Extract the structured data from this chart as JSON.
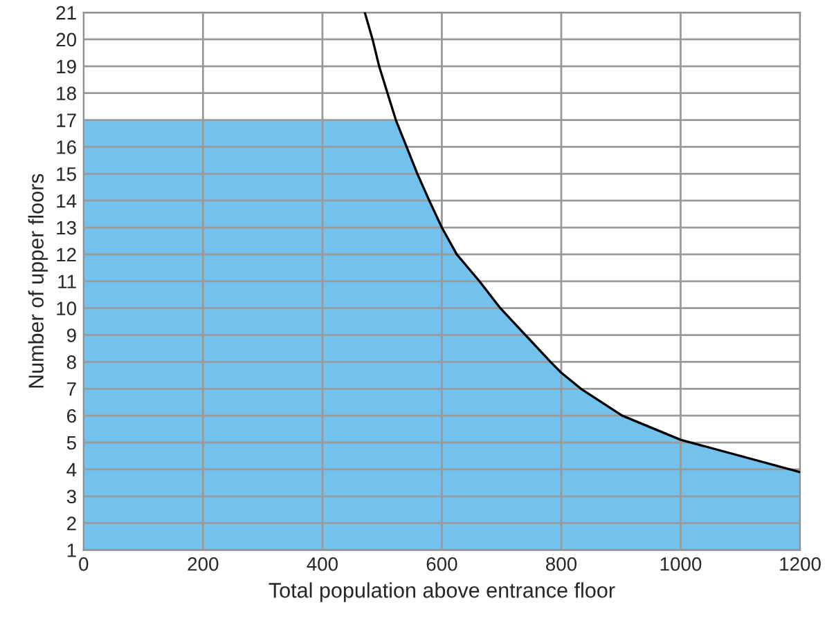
{
  "chart_data": {
    "type": "area",
    "xlabel": "Total population above entrance floor",
    "ylabel": "Number of upper floors",
    "series": [
      {
        "color": "#73c2ee",
        "x": [
          0,
          523,
          541,
          559,
          579,
          600,
          625,
          663,
          698,
          740,
          782,
          800,
          833,
          902,
          1000,
          1017,
          1200
        ],
        "values": [
          17,
          17,
          16,
          15,
          14,
          13,
          12,
          11,
          10,
          9,
          8,
          7.6,
          7,
          6,
          5.1,
          5,
          3.9
        ]
      },
      {
        "type": "line",
        "color": "#000000",
        "x": [
          471,
          484,
          495,
          509,
          523,
          541,
          559,
          579,
          600,
          625,
          663,
          698,
          740,
          782,
          800,
          833,
          902,
          1000,
          1017,
          1200
        ],
        "values": [
          21,
          20,
          19,
          18,
          17,
          16,
          15,
          14,
          13,
          12,
          11,
          10,
          9,
          8,
          7.6,
          7,
          6,
          5.1,
          5,
          3.9
        ]
      }
    ],
    "xlim": [
      0,
      1200
    ],
    "xticks": [
      0,
      200,
      400,
      600,
      800,
      1000,
      1200
    ],
    "ylim": [
      1,
      21
    ],
    "yticks": [
      1,
      2,
      3,
      4,
      5,
      6,
      7,
      8,
      9,
      10,
      11,
      12,
      13,
      14,
      15,
      16,
      17,
      18,
      19,
      20,
      21
    ],
    "grid": true,
    "legend": false,
    "marker": "none",
    "line_style": "solid"
  }
}
